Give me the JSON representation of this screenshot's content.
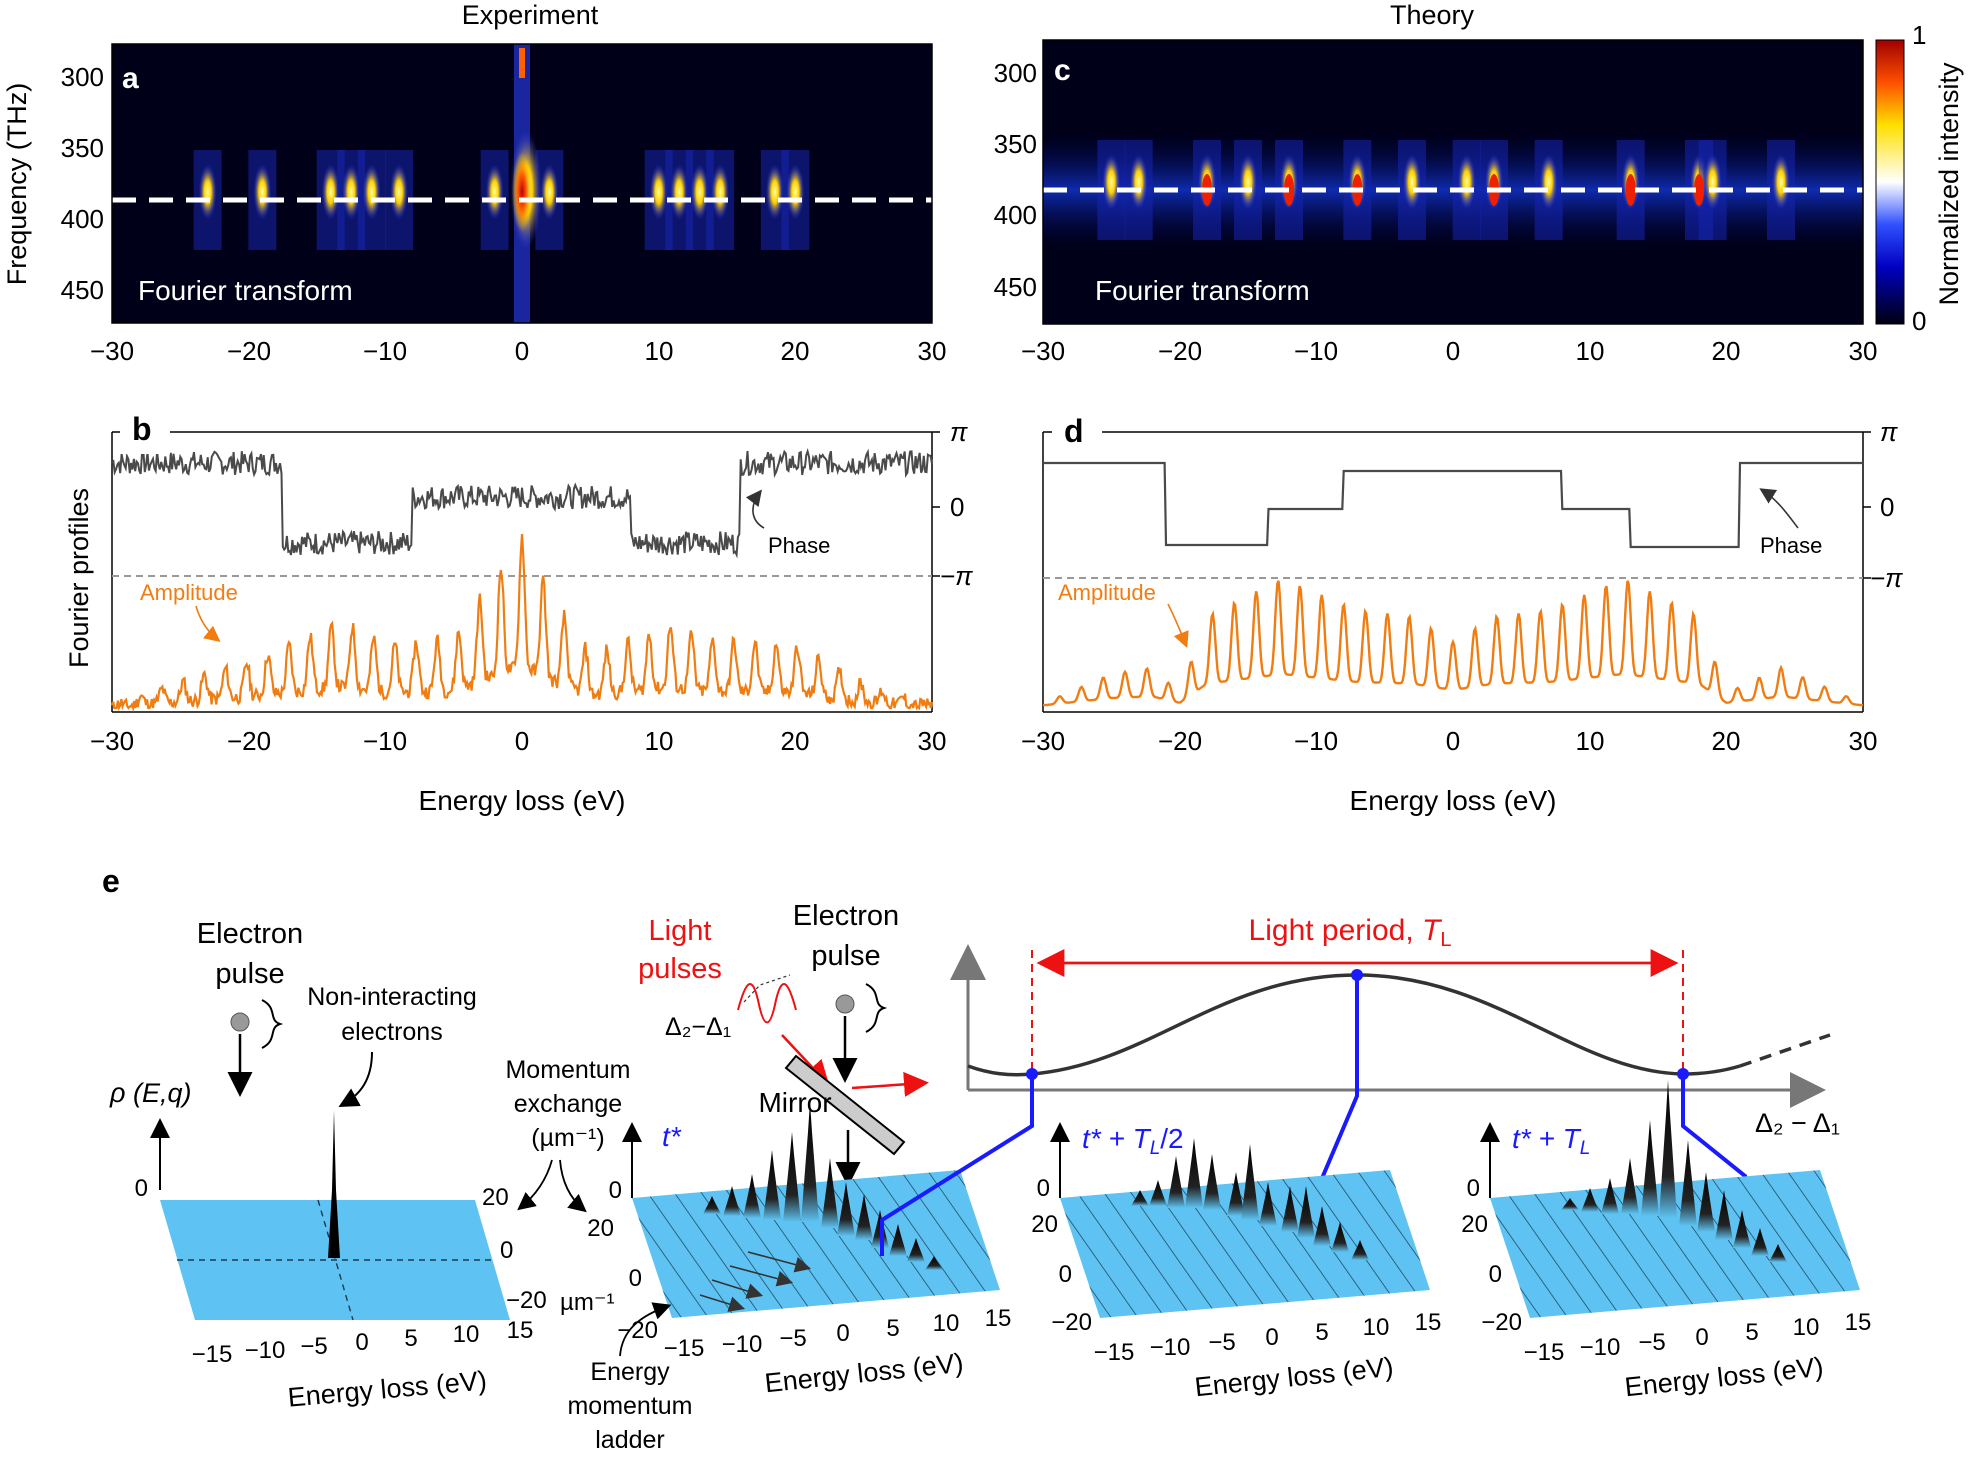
{
  "colors": {
    "amplitude": "#f07d12",
    "phase": "#4a4a4a",
    "blue_line": "#1a1aff",
    "red_annot": "#ee1111",
    "plane": "#5ec3f2",
    "heat_bg": "#000018",
    "dashed": "#ffffff"
  },
  "panel_a": {
    "letter": "a",
    "title": "Experiment",
    "ylabel": "Frequency (THz)",
    "yticks": [
      "300",
      "350",
      "400",
      "450"
    ],
    "xticks": [
      "−30",
      "−20",
      "−10",
      "0",
      "10",
      "20",
      "30"
    ],
    "inset_label": "Fourier transform"
  },
  "panel_b": {
    "letter": "b",
    "ylabel": "Fourier profiles",
    "xlabel": "Energy loss (eV)",
    "xticks": [
      "−30",
      "−20",
      "−10",
      "0",
      "10",
      "20",
      "30"
    ],
    "phase_label": "Phase",
    "amplitude_label": "Amplitude",
    "phase_ticks": [
      "π",
      "0",
      "−π"
    ]
  },
  "panel_c": {
    "letter": "c",
    "title": "Theory",
    "yticks": [
      "300",
      "350",
      "400",
      "450"
    ],
    "xticks": [
      "−30",
      "−20",
      "−10",
      "0",
      "10",
      "20",
      "30"
    ],
    "inset_label": "Fourier transform",
    "colorbar_label": "Normalized intensity",
    "colorbar_max": "1",
    "colorbar_min": "0"
  },
  "panel_d": {
    "letter": "d",
    "xlabel": "Energy loss (eV)",
    "xticks": [
      "−30",
      "−20",
      "−10",
      "0",
      "10",
      "20",
      "30"
    ],
    "phase_label": "Phase",
    "amplitude_label": "Amplitude",
    "phase_ticks": [
      "π",
      "0",
      "−π"
    ]
  },
  "panel_e": {
    "letter": "e",
    "electron_pulse_1": [
      "Electron",
      "pulse"
    ],
    "non_interacting": [
      "Non-interacting",
      "electrons"
    ],
    "rho_label": "ρ (E,q)",
    "momentum_exchange": [
      "Momentum",
      "exchange",
      "(µm⁻¹)"
    ],
    "light_pulses": [
      "Light",
      "pulses"
    ],
    "electron_pulse_2": [
      "Electron",
      "pulse"
    ],
    "delta_label": "Δ₂−Δ₁",
    "mirror": "Mirror",
    "light_period": "Light period, ",
    "light_period_sym": "T",
    "light_period_sub": "L",
    "axis_delta": "Δ₂ − Δ₁",
    "t_star": "t*",
    "t_star_half": "t* + T",
    "t_star_half_tail": "/2",
    "t_star_full": "t* + T",
    "sub_L": "L",
    "mu_m": "µm⁻¹",
    "energy_ladder": [
      "Energy",
      "momentum",
      "ladder"
    ],
    "energy_axis_label": "Energy loss (eV)",
    "energy_ticks": [
      "−15",
      "−10",
      "−5",
      "0",
      "5",
      "10",
      "15"
    ],
    "momentum_ticks": [
      "20",
      "0",
      "−20"
    ],
    "vertical_tick": "0"
  },
  "chart_data": [
    {
      "type": "heatmap",
      "panel": "a",
      "title": "Experiment",
      "xlabel": "Energy loss (eV)",
      "ylabel": "Frequency (THz)",
      "xlim": [
        -30,
        30
      ],
      "ylim": [
        475,
        275
      ],
      "dashed_line_frequency": 385,
      "peak_positions_eV": [
        -23,
        -19,
        -14,
        -12.5,
        -11,
        -9,
        -2,
        0,
        2,
        10,
        11.5,
        13,
        14.5,
        18.5,
        20
      ]
    },
    {
      "type": "heatmap",
      "panel": "c",
      "title": "Theory",
      "xlabel": "Energy loss (eV)",
      "xlim": [
        -30,
        30
      ],
      "ylim": [
        475,
        275
      ],
      "dashed_line_frequency": 384,
      "peak_positions_eV": [
        -25,
        -23,
        -18,
        -15,
        -12,
        -7,
        -3,
        1,
        3,
        7,
        13,
        18,
        19,
        24
      ]
    },
    {
      "type": "line",
      "panel": "b",
      "xlabel": "Energy loss (eV)",
      "xlim": [
        -30,
        30
      ],
      "series": [
        {
          "name": "Phase",
          "x": [
            -30,
            -17.5,
            -17.5,
            -8,
            -8,
            8,
            8,
            16,
            16,
            30
          ],
          "values": [
            2.2,
            2.2,
            -1.8,
            -1.8,
            0.5,
            0.5,
            -1.8,
            -1.8,
            2.2,
            2.2
          ]
        },
        {
          "name": "Amplitude",
          "x": [
            -30,
            -23,
            -20,
            -13,
            -10,
            -5,
            0,
            2,
            5,
            11,
            13,
            20,
            25,
            30
          ],
          "values": [
            0.02,
            0.3,
            0.4,
            0.75,
            0.55,
            0.6,
            1.5,
            1.0,
            0.45,
            0.72,
            0.6,
            0.55,
            0.2,
            0.02
          ]
        }
      ]
    },
    {
      "type": "line",
      "panel": "d",
      "xlabel": "Energy loss (eV)",
      "xlim": [
        -30,
        30
      ],
      "series": [
        {
          "name": "Phase",
          "x": [
            -30,
            -21,
            -21,
            -13.5,
            -13.5,
            -8,
            -8,
            8,
            8,
            13,
            13,
            21,
            21,
            30
          ],
          "values": [
            2.2,
            2.2,
            -1.9,
            -1.9,
            -0.1,
            -0.1,
            1.8,
            1.8,
            -0.1,
            -0.1,
            -2.0,
            -2.0,
            2.2,
            2.2
          ]
        },
        {
          "name": "Amplitude",
          "x": [
            -30,
            -25,
            -22,
            -20,
            -18,
            -12.5,
            -7,
            -3,
            0,
            3,
            7,
            12.5,
            18,
            20,
            24,
            30
          ],
          "values": [
            0.02,
            0.25,
            0.3,
            0.1,
            0.7,
            1.0,
            0.75,
            0.7,
            0.5,
            0.7,
            0.75,
            1.0,
            0.7,
            0.1,
            0.3,
            0.02
          ]
        }
      ]
    }
  ]
}
